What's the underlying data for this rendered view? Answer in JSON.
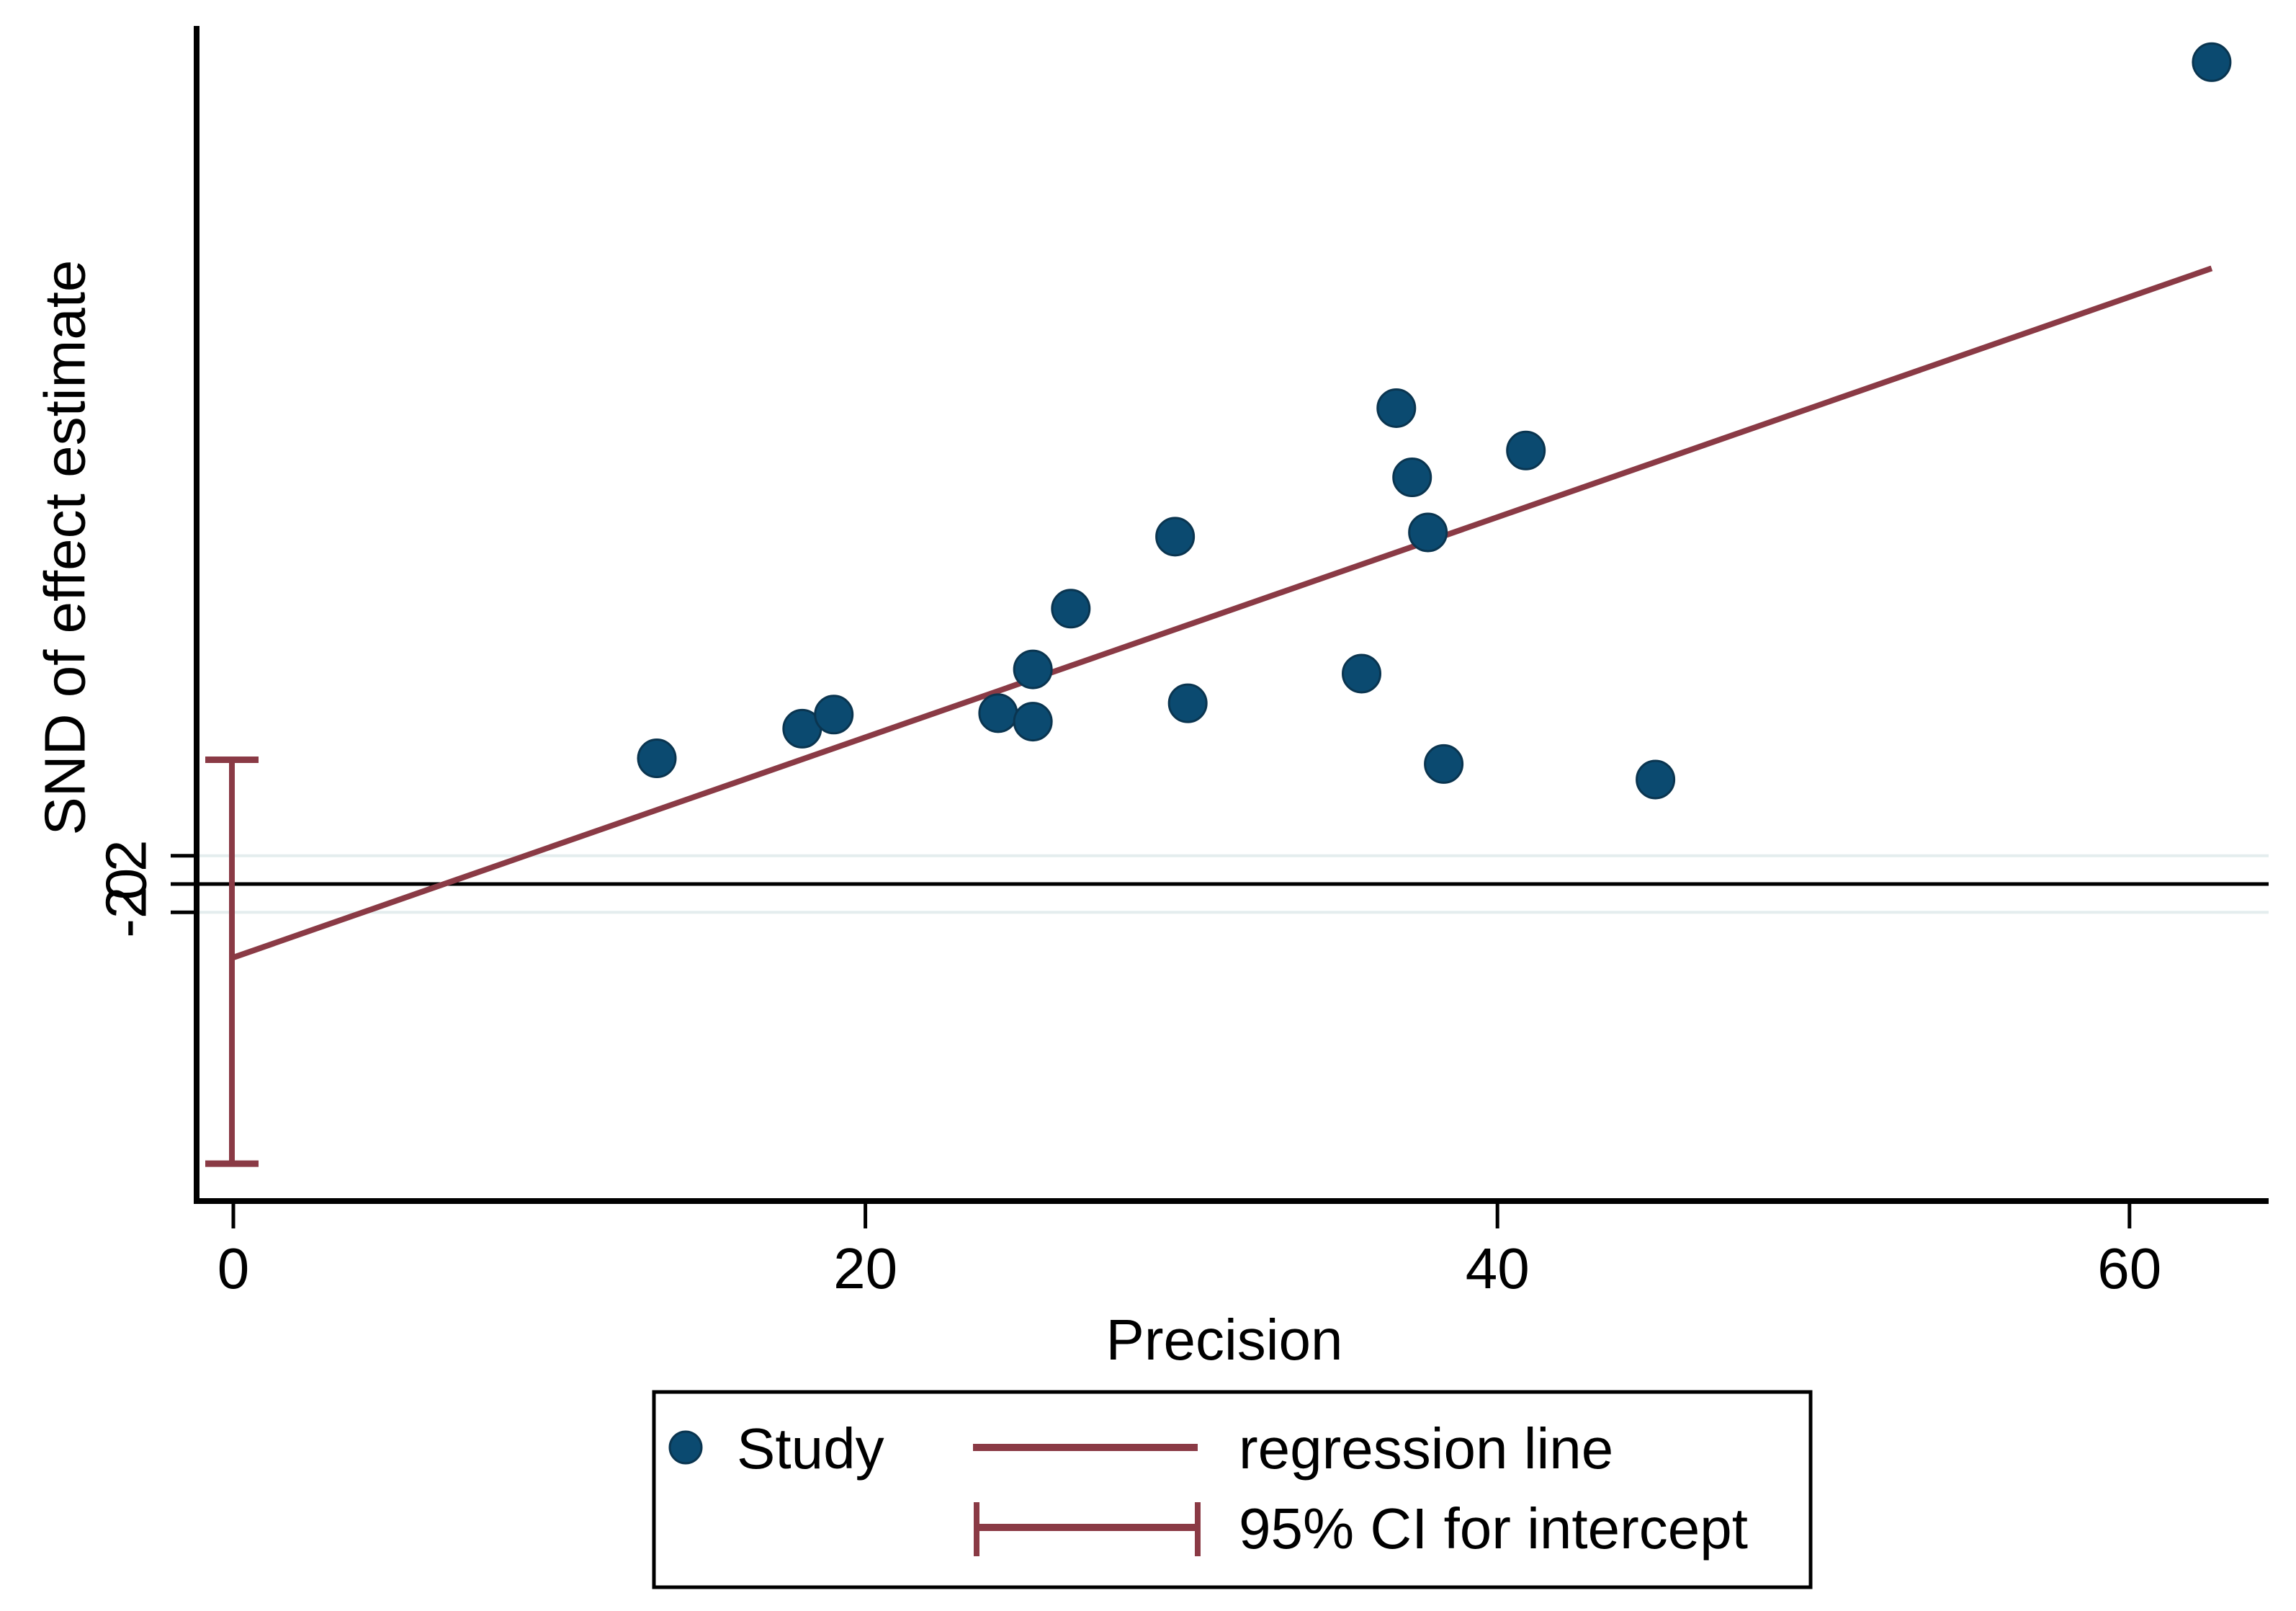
{
  "chart_data": {
    "type": "scatter",
    "title": "",
    "xlabel": "Precision",
    "ylabel": "SND of effect estimate",
    "xlim": [
      -1.2,
      64.4
    ],
    "ylim": [
      -22.4,
      60.8
    ],
    "grid": "faint horizontal gridlines at y ticks only",
    "x_ticks": [
      0,
      20,
      40,
      60
    ],
    "x_tick_labels": [
      "0",
      "20",
      "40",
      "60"
    ],
    "y_ticks": [
      -2,
      0,
      2
    ],
    "y_tick_labels": [
      "-2",
      "0",
      "2"
    ],
    "y_tick_label_angle": 90,
    "zero_line_y": 0,
    "grid_y": [
      -2,
      2
    ],
    "series": [
      {
        "name": "Study",
        "marker": "filled-circle",
        "points": [
          [
            13.4,
            8.9
          ],
          [
            18.0,
            11.0
          ],
          [
            19.0,
            12.0
          ],
          [
            24.2,
            12.1
          ],
          [
            25.3,
            15.2
          ],
          [
            25.3,
            11.5
          ],
          [
            26.5,
            19.5
          ],
          [
            29.8,
            24.6
          ],
          [
            30.2,
            12.8
          ],
          [
            35.7,
            14.9
          ],
          [
            36.8,
            33.7
          ],
          [
            37.3,
            28.8
          ],
          [
            37.8,
            24.9
          ],
          [
            38.3,
            8.5
          ],
          [
            40.9,
            30.7
          ],
          [
            45.0,
            7.4
          ],
          [
            62.6,
            58.2
          ]
        ]
      }
    ],
    "regression_line": {
      "x_start": 0,
      "y_start": -5.2,
      "x_end": 62.6,
      "y_end": 43.6,
      "slope": 0.78,
      "intercept": -5.2
    },
    "ci_intercept": {
      "x": 0,
      "lower": -19.8,
      "upper": 8.8
    },
    "legend": [
      {
        "label": "Study",
        "type": "marker"
      },
      {
        "label": "regression line",
        "type": "line"
      },
      {
        "label": "95% CI for intercept",
        "type": "error-bar"
      }
    ],
    "legend_position": "below plot, centered, boxed",
    "colors": {
      "marker": "#0b4a70",
      "marker_edge": "#0a3550",
      "regression": "#8a3a45",
      "ci": "#8a3a45",
      "axis": "#000000",
      "zero_line": "#000000",
      "grid": "#e4edee",
      "background": "#ffffff"
    }
  }
}
